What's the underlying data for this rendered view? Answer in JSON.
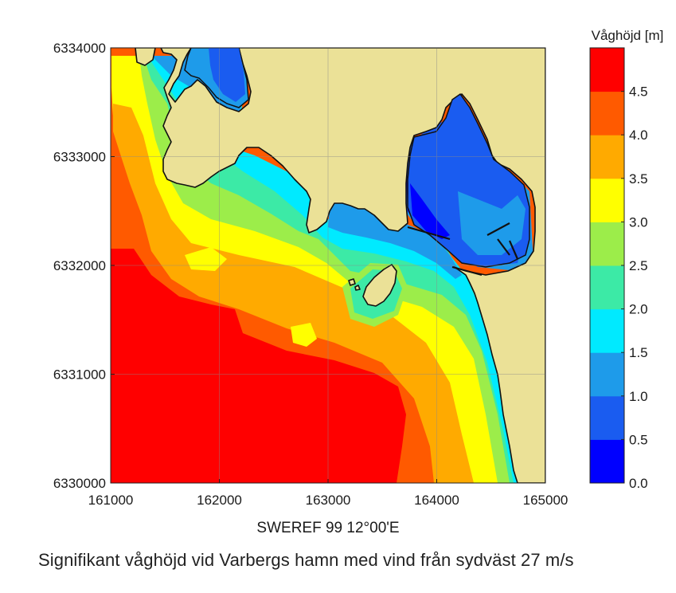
{
  "map_data": {
    "colorbar": {
      "title": "Våghöjd [m]",
      "tick_labels": [
        "0.0",
        "0.5",
        "1.0",
        "1.5",
        "2.0",
        "2.5",
        "3.0",
        "3.5",
        "4.0",
        "4.5"
      ],
      "colors": [
        "#0000ff",
        "#1a5cf0",
        "#1e9bea",
        "#00eaff",
        "#3ceaa6",
        "#9ced4a",
        "#ffff00",
        "#ffaa00",
        "#ff5a00",
        "#ff0000"
      ]
    },
    "x_axis": {
      "label": "SWEREF 99 12°00'E",
      "ticks": [
        "161000",
        "162000",
        "163000",
        "164000",
        "165000"
      ],
      "range": [
        161000,
        165000
      ]
    },
    "y_axis": {
      "ticks": [
        "6330000",
        "6331000",
        "6332000",
        "6333000",
        "6334000"
      ],
      "range": [
        6330000,
        6334000
      ]
    },
    "land_color": "#ebe197",
    "grid": true
  },
  "caption": "Signifikant våghöjd vid Varbergs hamn med vind från sydväst 27 m/s"
}
